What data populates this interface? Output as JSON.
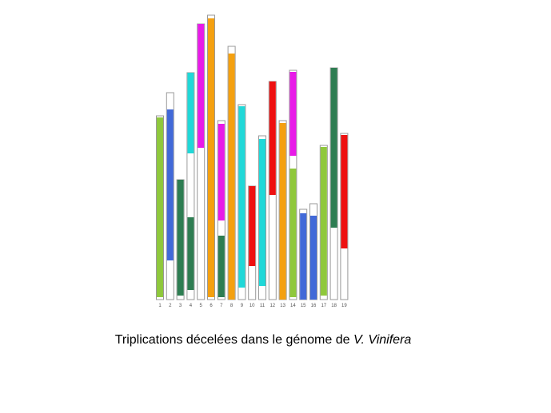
{
  "chromosomes": {
    "labels": [
      "1",
      "2",
      "3",
      "4",
      "5",
      "6",
      "7",
      "8",
      "9",
      "10",
      "11",
      "12",
      "13",
      "14",
      "15",
      "16",
      "17",
      "18",
      "19"
    ]
  },
  "caption": {
    "text": "Triplications décelées dans le génome de ",
    "species": "V. Vinifera"
  }
}
